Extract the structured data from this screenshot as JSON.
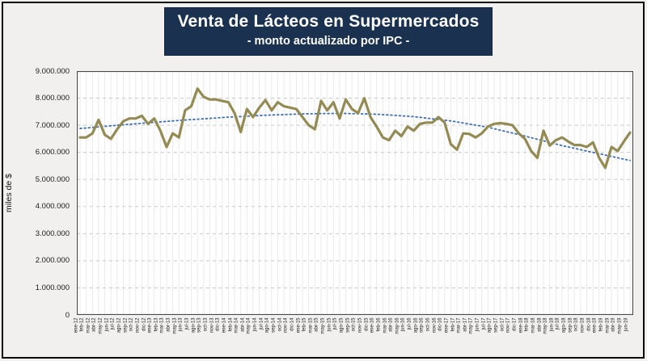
{
  "header": {
    "title": "Venta de Lácteos en Supermercados",
    "subtitle": "- monto actualizado por IPC -"
  },
  "colors": {
    "title_box_bg": "#1a3150",
    "title_text": "#ffffff",
    "series_line": "#948A54",
    "trend_line": "#3E6FB5",
    "plot_bg": "#ffffff",
    "page_bg": "#f1f0ee",
    "h_gridline": "#c9c9c9",
    "v_gridline": "#ebebeb",
    "plot_border": "#4a4a4a",
    "outer_border": "#0b0b0b"
  },
  "chart_data": {
    "type": "line",
    "title": "Venta de Lácteos en Supermercados",
    "subtitle": "- monto actualizado por IPC -",
    "xlabel": "",
    "ylabel": "miles de $",
    "ylim": [
      0,
      9000000
    ],
    "ytick_step": 1000000,
    "ytick_labels": [
      "9.000.000",
      "8.000.000",
      "7.000.000",
      "6.000.000",
      "5.000.000",
      "4.000.000",
      "3.000.000",
      "2.000.000",
      "1.000.000",
      "0"
    ],
    "grid": "horizontal-dashed and vertical-per-category",
    "legend": "none",
    "categories": [
      "ene-12",
      "feb-12",
      "mar-12",
      "abr-12",
      "may-12",
      "jun-12",
      "jul-12",
      "ago-12",
      "sep-12",
      "oct-12",
      "nov-12",
      "dic-12",
      "ene-13",
      "feb-13",
      "mar-13",
      "abr-13",
      "may-13",
      "jun-13",
      "jul-13",
      "ago-13",
      "sep-13",
      "oct-13",
      "nov-13",
      "dic-13",
      "ene-14",
      "feb-14",
      "mar-14",
      "abr-14",
      "may-14",
      "jun-14",
      "jul-14",
      "ago-14",
      "sep-14",
      "oct-14",
      "nov-14",
      "dic-14",
      "ene-15",
      "feb-15",
      "mar-15",
      "abr-15",
      "may-15",
      "jun-15",
      "jul-15",
      "ago-15",
      "sep-15",
      "oct-15",
      "nov-15",
      "dic-15",
      "ene-16",
      "feb-16",
      "mar-16",
      "abr-16",
      "may-16",
      "jun-16",
      "jul-16",
      "ago-16",
      "sep-16",
      "oct-16",
      "nov-16",
      "dic-16",
      "ene-17",
      "feb-17",
      "mar-17",
      "abr-17",
      "may-17",
      "jun-17",
      "jul-17",
      "ago-17",
      "sep-17",
      "oct-17",
      "nov-17",
      "dic-17",
      "ene-18",
      "feb-18",
      "mar-18",
      "abr-18",
      "may-18",
      "jun-18",
      "jul-18",
      "ago-18",
      "sep-18",
      "oct-18",
      "nov-18",
      "dic-18",
      "ene-19",
      "feb-19",
      "mar-19",
      "abr-19",
      "may-19",
      "jun-19"
    ],
    "values": [
      6550000,
      6550000,
      6700000,
      7200000,
      6650000,
      6500000,
      6850000,
      7150000,
      7250000,
      7250000,
      7350000,
      7050000,
      7250000,
      6800000,
      6200000,
      6700000,
      6550000,
      7550000,
      7700000,
      8350000,
      8050000,
      7950000,
      7950000,
      7900000,
      7850000,
      7450000,
      6750000,
      7600000,
      7300000,
      7650000,
      7930000,
      7550000,
      7850000,
      7700000,
      7650000,
      7600000,
      7300000,
      7000000,
      6850000,
      7900000,
      7550000,
      7850000,
      7250000,
      7950000,
      7600000,
      7450000,
      8000000,
      7300000,
      6950000,
      6550000,
      6450000,
      6800000,
      6600000,
      6950000,
      6800000,
      7050000,
      7100000,
      7100000,
      7300000,
      7100000,
      6300000,
      6100000,
      6700000,
      6680000,
      6550000,
      6700000,
      6950000,
      7050000,
      7080000,
      7050000,
      7000000,
      6700000,
      6500000,
      6050000,
      5800000,
      6800000,
      6250000,
      6450000,
      6550000,
      6400000,
      6270000,
      6270000,
      6200000,
      6370000,
      5800000,
      5430000,
      6200000,
      6050000,
      6400000,
      6730000
    ],
    "trend_dotted": {
      "indices": [
        0,
        6,
        12,
        18,
        24,
        30,
        36,
        42,
        48,
        54,
        60,
        66,
        72,
        78,
        84,
        89
      ],
      "values": [
        6880000,
        7000000,
        7110000,
        7210000,
        7300000,
        7370000,
        7420000,
        7440000,
        7410000,
        7320000,
        7160000,
        6930000,
        6600000,
        6250000,
        5950000,
        5700000
      ]
    }
  }
}
